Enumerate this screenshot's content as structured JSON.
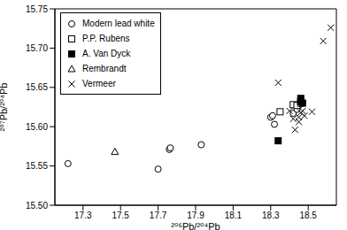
{
  "chart_data": {
    "type": "scatter",
    "xlabel": "²⁰⁶Pb/²⁰⁴Pb",
    "ylabel": "²⁰⁷Pb/²⁰⁴Pb",
    "xlim": [
      17.15,
      18.65
    ],
    "xticks": [
      17.3,
      17.5,
      17.7,
      17.9,
      18.1,
      18.3,
      18.5
    ],
    "ylim": [
      15.5,
      15.75
    ],
    "yticks": [
      {
        "value": 15.5,
        "label": "15.50"
      },
      {
        "value": 15.55,
        "label": "15.55"
      },
      {
        "value": 15.6,
        "label": "15.60"
      },
      {
        "value": 15.65,
        "label": "15.65"
      },
      {
        "value": 15.7,
        "label": "15.70"
      },
      {
        "value": 15.75,
        "label": "15.75"
      }
    ],
    "grid": false,
    "legend": "upper left",
    "series": [
      {
        "name": "Modern lead white",
        "color": "#000000",
        "marker": "circle-open",
        "x": [
          17.22,
          17.7,
          17.76,
          17.765,
          17.93,
          18.3,
          18.31,
          18.32,
          18.42,
          18.44,
          18.45
        ],
        "values": [
          15.553,
          15.546,
          15.571,
          15.573,
          15.577,
          15.612,
          15.614,
          15.603,
          15.617,
          15.622,
          15.627
        ]
      },
      {
        "name": "P.P. Rubens",
        "color": "#000000",
        "marker": "square-open",
        "x": [
          18.35,
          18.42,
          18.44,
          18.46
        ],
        "values": [
          15.619,
          15.628,
          15.627,
          15.63
        ]
      },
      {
        "name": "A. Van Dyck",
        "color": "#000000",
        "marker": "square",
        "x": [
          18.34,
          18.46,
          18.46,
          18.47
        ],
        "values": [
          15.582,
          15.632,
          15.636,
          15.63
        ]
      },
      {
        "name": "Rembrandt",
        "color": "#000000",
        "marker": "triangle-open",
        "x": [
          17.47
        ],
        "values": [
          15.568
        ]
      },
      {
        "name": "Vermeer",
        "color": "#000000",
        "marker": "x",
        "x": [
          18.34,
          18.4,
          18.42,
          18.43,
          18.45,
          18.46,
          18.47,
          18.48,
          18.52,
          18.58,
          18.62,
          18.45
        ],
        "values": [
          15.656,
          15.62,
          15.61,
          15.596,
          15.606,
          15.618,
          15.62,
          15.614,
          15.619,
          15.709,
          15.726,
          15.612
        ]
      }
    ]
  }
}
